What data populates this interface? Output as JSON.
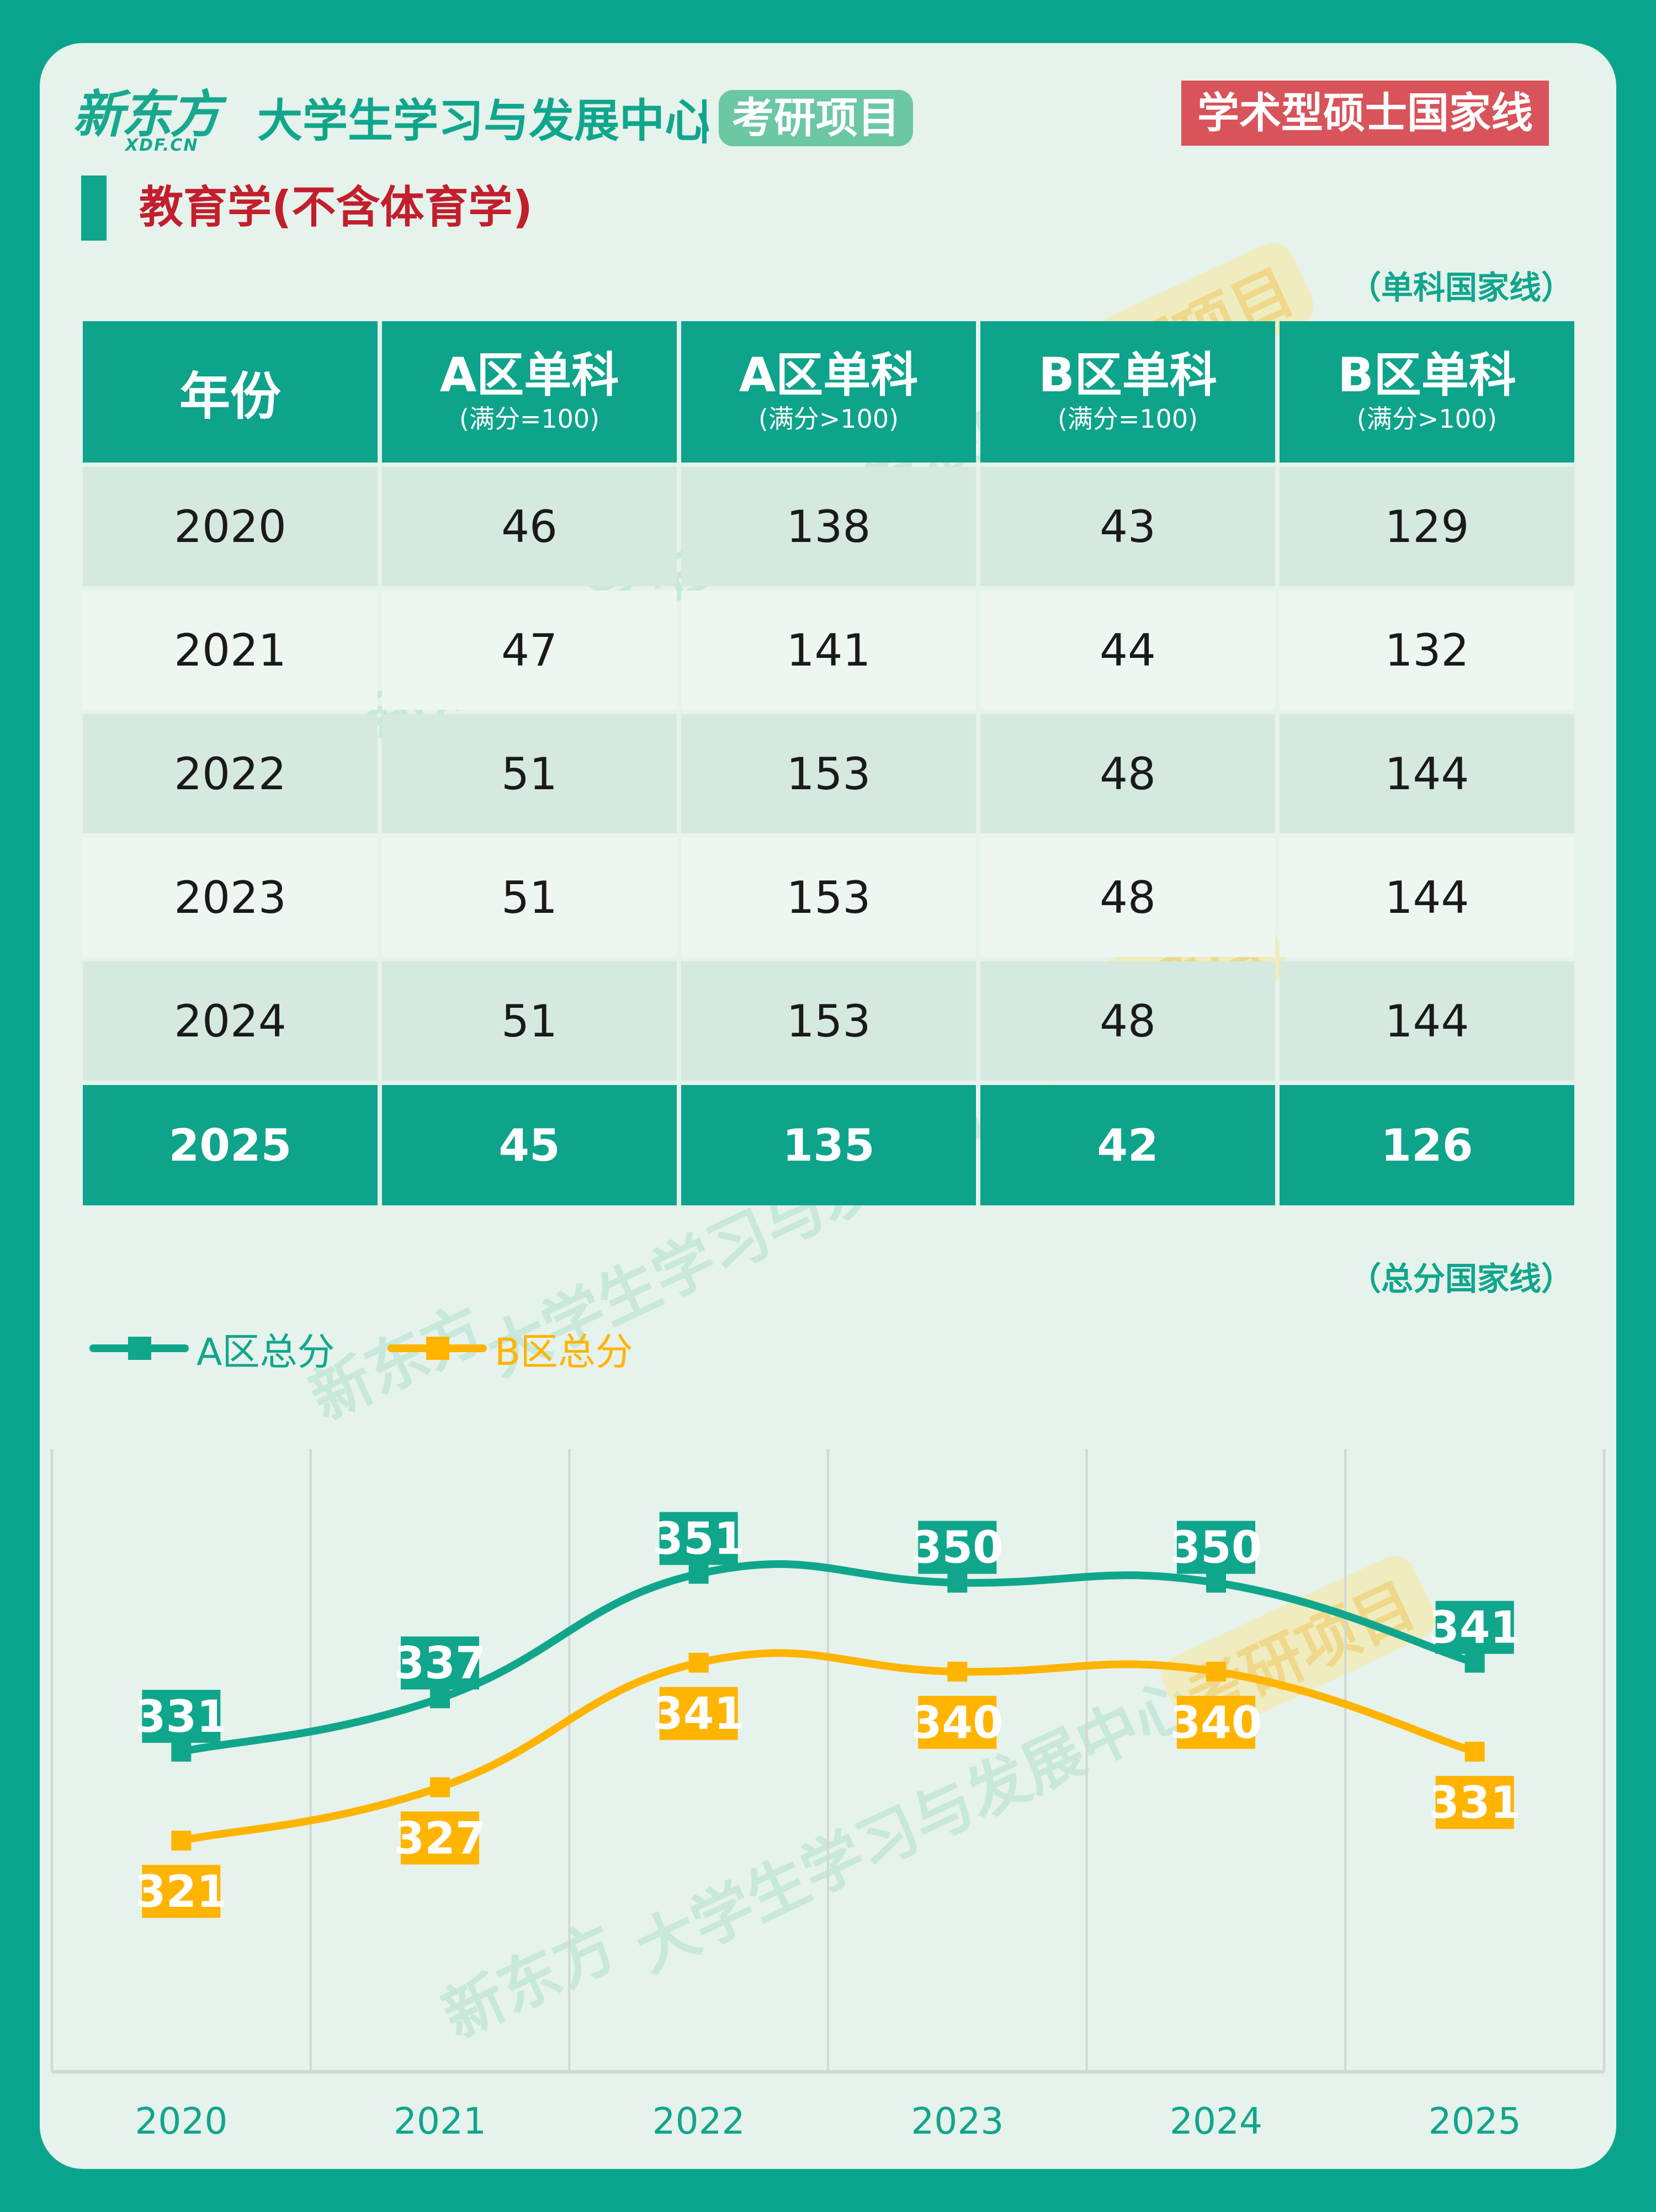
{
  "header": {
    "logo_main": "新东方",
    "logo_sub": "XDF.CN",
    "center_name": "大学生学习与发展中心",
    "project_tag": "考研项目",
    "badge": "学术型硕士国家线"
  },
  "subject": "教育学(不含体育学)",
  "single_caption": "（单科国家线）",
  "total_caption": "（总分国家线）",
  "table": {
    "year_header": "年份",
    "columns": [
      {
        "title": "A区单科",
        "note": "(满分=100)"
      },
      {
        "title": "A区单科",
        "note": "(满分>100)"
      },
      {
        "title": "B区单科",
        "note": "(满分=100)"
      },
      {
        "title": "B区单科",
        "note": "(满分>100)"
      }
    ],
    "rows": [
      {
        "year": "2020",
        "a_eq100": "46",
        "a_gt100": "138",
        "b_eq100": "43",
        "b_gt100": "129"
      },
      {
        "year": "2021",
        "a_eq100": "47",
        "a_gt100": "141",
        "b_eq100": "44",
        "b_gt100": "132"
      },
      {
        "year": "2022",
        "a_eq100": "51",
        "a_gt100": "153",
        "b_eq100": "48",
        "b_gt100": "144"
      },
      {
        "year": "2023",
        "a_eq100": "51",
        "a_gt100": "153",
        "b_eq100": "48",
        "b_gt100": "144"
      },
      {
        "year": "2024",
        "a_eq100": "51",
        "a_gt100": "153",
        "b_eq100": "48",
        "b_gt100": "144"
      },
      {
        "year": "2025",
        "a_eq100": "45",
        "a_gt100": "135",
        "b_eq100": "42",
        "b_gt100": "126"
      }
    ]
  },
  "watermark": {
    "brand": "新东方",
    "center": "大学生学习与发展中心",
    "project": "考研项目"
  },
  "colors": {
    "teal": "#10a68c",
    "orange": "#ffb400",
    "red": "#d8535a",
    "card": "#e6f2ec"
  },
  "chart_data": {
    "type": "line",
    "categories": [
      "2020",
      "2021",
      "2022",
      "2023",
      "2024",
      "2025"
    ],
    "series": [
      {
        "name": "A区总分",
        "values": [
          331,
          337,
          351,
          350,
          350,
          341
        ],
        "color": "#10a68c"
      },
      {
        "name": "B区总分",
        "values": [
          321,
          327,
          341,
          340,
          340,
          331
        ],
        "color": "#ffb400"
      }
    ],
    "ylim": [
      295,
      365
    ],
    "grid": "vertical",
    "legend": "top-left",
    "data_labels": true
  }
}
